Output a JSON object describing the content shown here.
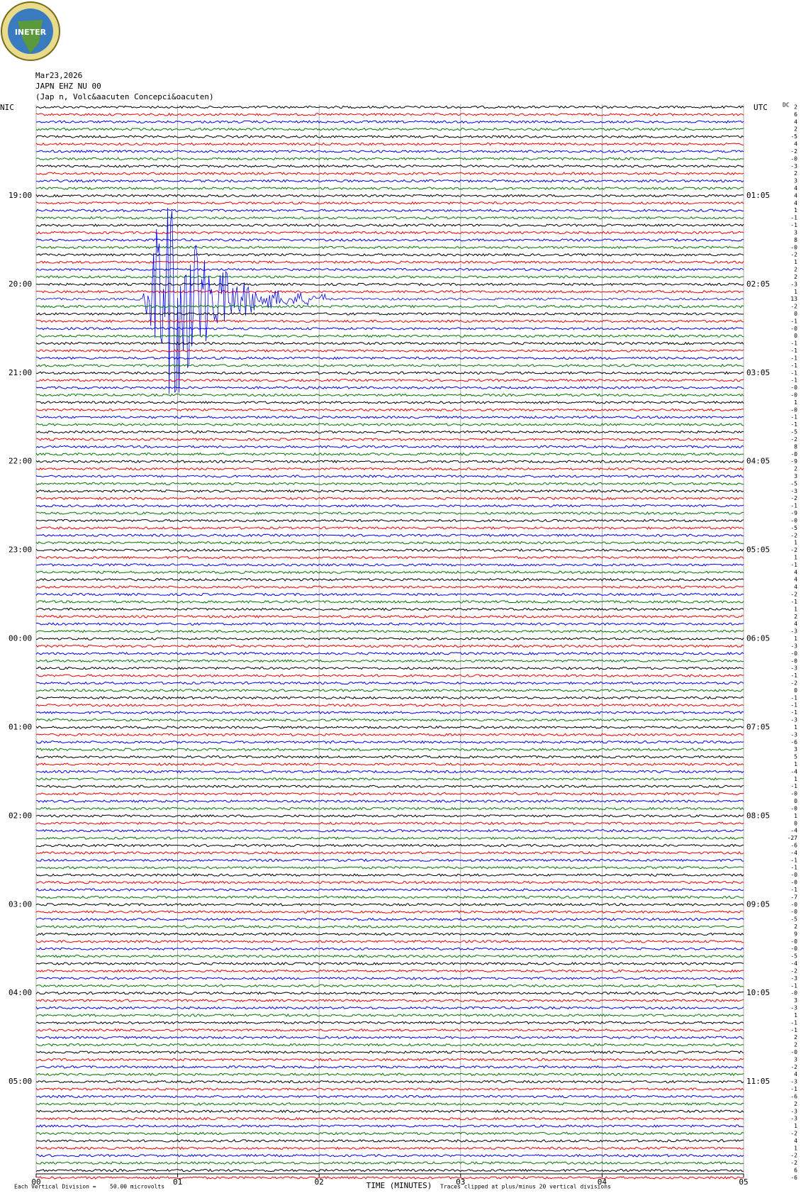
{
  "header": {
    "logo_text": "INETER",
    "date": "Mar23,2026",
    "station": "JAPN EHZ NU 00",
    "location": "(Jap  n, Volc&aacuten Concepci&oacuten)",
    "left_label": "NIC",
    "right_label": "UTC",
    "dc_label": "DC"
  },
  "left_times": [
    "19:00",
    "20:00",
    "21:00",
    "22:00",
    "23:00",
    "00:00",
    "01:00",
    "02:00",
    "03:00",
    "04:00",
    "05:00"
  ],
  "right_times": [
    "01:05",
    "02:05",
    "03:05",
    "04:05",
    "05:05",
    "06:05",
    "07:05",
    "08:05",
    "09:05",
    "10:05",
    "11:05"
  ],
  "dc_values": [
    "2",
    "6",
    "4",
    "2",
    "-5",
    "4",
    "-2",
    "-0",
    "-3",
    "2",
    "3",
    "4",
    "4",
    "4",
    "1",
    "-1",
    "-1",
    "3",
    "8",
    "-0",
    "-2",
    "1",
    "2",
    "2",
    "-3",
    "1",
    "13",
    "-2",
    "0",
    "-1",
    "-0",
    "0",
    "-1",
    "-1",
    "-1",
    "-1",
    "-1",
    "-1",
    "-0",
    "-0",
    "1",
    "-0",
    "-1",
    "-1",
    "-5",
    "-2",
    "8",
    "-0",
    "-9",
    "2",
    "3",
    "-5",
    "-3",
    "-2",
    "-1",
    "-9",
    "-0",
    "-5",
    "-2",
    "1",
    "-2",
    "1",
    "-1",
    "4",
    "4",
    "4",
    "-2",
    "-1",
    "1",
    "2",
    "4",
    "-3",
    "1",
    "-3",
    "-0",
    "-0",
    "-3",
    "-1",
    "-2",
    "0",
    "-1",
    "-1",
    "-1",
    "-3",
    "1",
    "-3",
    "-6",
    "3",
    "5",
    "1",
    "-4",
    "1",
    "-1",
    "-0",
    "0",
    "-0",
    "1",
    "0",
    "-4",
    "-27",
    "-6",
    "-4",
    "-1",
    "-1",
    "-0",
    "-0",
    "-1",
    "-7",
    "-0",
    "-0",
    "-5",
    "2",
    "9",
    "-0",
    "-0",
    "-5",
    "-4",
    "-2",
    "-3",
    "-1",
    "-0",
    "3",
    "-3",
    "1",
    "-1",
    "-1",
    "2",
    "2",
    "-0",
    "3",
    "-2",
    "4",
    "-3",
    "-1",
    "-6",
    "2",
    "-3",
    "-3",
    "1",
    "-2",
    "4",
    "1",
    "-2",
    "-2",
    "6",
    "-6"
  ],
  "x_axis": {
    "ticks": [
      "00",
      "01",
      "02",
      "03",
      "04",
      "05"
    ],
    "title": "TIME (MINUTES)"
  },
  "footer": {
    "scale_label": "Each Vertical Division =",
    "scale_value": "50.00 microvolts",
    "clip_note": "Traces clipped at plus/minus 20 vertical divisions"
  }
}
